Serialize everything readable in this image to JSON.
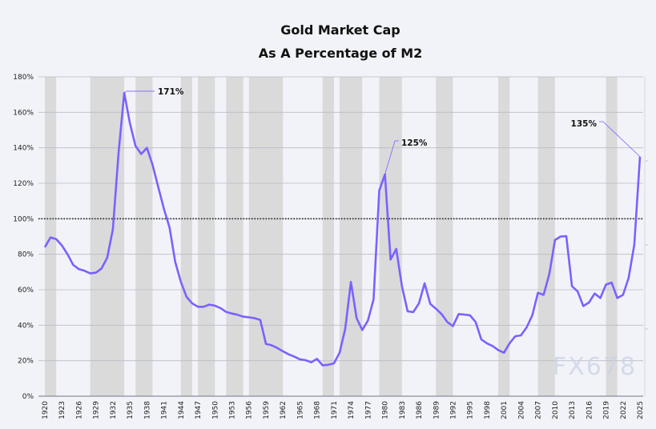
{
  "chart_data": {
    "type": "line",
    "title": "Gold Market Cap",
    "subtitle": "As A Percentage of M2",
    "xlabel": "",
    "ylabel": "",
    "ylim": [
      0,
      180
    ],
    "xlim": [
      1920,
      2025
    ],
    "y_ticks": [
      "0%",
      "20%",
      "40%",
      "60%",
      "80%",
      "100%",
      "120%",
      "140%",
      "160%",
      "180%"
    ],
    "x_ticks": [
      "1920",
      "1923",
      "1926",
      "1929",
      "1932",
      "1935",
      "1938",
      "1941",
      "1944",
      "1947",
      "1950",
      "1953",
      "1956",
      "1959",
      "1962",
      "1965",
      "1968",
      "1971",
      "1974",
      "1977",
      "1980",
      "1983",
      "1986",
      "1989",
      "1992",
      "1995",
      "1998",
      "2001",
      "2004",
      "2007",
      "2010",
      "2013",
      "2016",
      "2019",
      "2022",
      "2025"
    ],
    "grid": true,
    "reference_line": {
      "value": 100,
      "style": "dotted"
    },
    "shaded_periods": [
      [
        1920,
        1922
      ],
      [
        1928,
        1934
      ],
      [
        1936,
        1939
      ],
      [
        1944,
        1946
      ],
      [
        1947,
        1950
      ],
      [
        1952,
        1955
      ],
      [
        1956,
        1962
      ],
      [
        1969,
        1971
      ],
      [
        1972,
        1976
      ],
      [
        1979,
        1983
      ],
      [
        1989,
        1992
      ],
      [
        2000,
        2002
      ],
      [
        2007,
        2010
      ],
      [
        2019,
        2021
      ]
    ],
    "series": [
      {
        "color": "#7b61ff",
        "x": [
          1920,
          1921,
          1922,
          1923,
          1924,
          1925,
          1926,
          1927,
          1928,
          1929,
          1930,
          1931,
          1932,
          1933,
          1934,
          1935,
          1936,
          1937,
          1938,
          1939,
          1940,
          1941,
          1942,
          1943,
          1944,
          1945,
          1946,
          1947,
          1948,
          1949,
          1950,
          1951,
          1952,
          1953,
          1954,
          1955,
          1956,
          1957,
          1958,
          1959,
          1960,
          1961,
          1962,
          1963,
          1964,
          1965,
          1966,
          1967,
          1968,
          1969,
          1970,
          1971,
          1972,
          1973,
          1974,
          1975,
          1976,
          1977,
          1978,
          1979,
          1980,
          1981,
          1982,
          1983,
          1984,
          1985,
          1986,
          1987,
          1988,
          1989,
          1990,
          1991,
          1992,
          1993,
          1994,
          1995,
          1996,
          1997,
          1998,
          1999,
          2000,
          2001,
          2002,
          2003,
          2004,
          2005,
          2006,
          2007,
          2008,
          2009,
          2010,
          2011,
          2012,
          2013,
          2014,
          2015,
          2016,
          2017,
          2018,
          2019,
          2020,
          2021,
          2022,
          2023,
          2024,
          2025
        ],
        "y": [
          84,
          89.5,
          88.5,
          85,
          80,
          74,
          71.6,
          70.7,
          69.2,
          69.6,
          72,
          78,
          94,
          137,
          171,
          154,
          141,
          136.5,
          140,
          130.5,
          118,
          105.7,
          95,
          75.6,
          64.4,
          56,
          52.3,
          50.4,
          50.4,
          51.6,
          51,
          49.6,
          47.5,
          46.6,
          45.9,
          44.8,
          44.5,
          44,
          43,
          29.5,
          28.7,
          27.2,
          25.3,
          23.6,
          22.3,
          20.8,
          20.3,
          19.1,
          21,
          17.4,
          17.7,
          18.5,
          24.5,
          38,
          64.4,
          44,
          37.3,
          42.6,
          54.6,
          116,
          125,
          77,
          83,
          62,
          47.8,
          47.4,
          52.3,
          63.6,
          52,
          49.3,
          46.3,
          41.8,
          39.5,
          46.3,
          46,
          45.6,
          41.8,
          32,
          29.8,
          28.3,
          26,
          24.5,
          29.8,
          33.8,
          34.3,
          38.8,
          45.6,
          58.3,
          57.1,
          68.9,
          88,
          90,
          90.2,
          62,
          59,
          50.8,
          52.8,
          57.9,
          55.3,
          62.9,
          64,
          55.3,
          57.1,
          66.6,
          85.4,
          135
        ]
      }
    ],
    "annotations": [
      {
        "year": 1934,
        "value": 171,
        "label": "171%"
      },
      {
        "year": 1980,
        "value": 125,
        "label": "125%"
      },
      {
        "year": 2025,
        "value": 135,
        "label": "135%"
      }
    ],
    "colors": {
      "line": "#7b61ff",
      "shading": "#dadada",
      "grid": "#b9bcc6",
      "background": "#f2f3f8"
    }
  },
  "watermark": "FX678"
}
